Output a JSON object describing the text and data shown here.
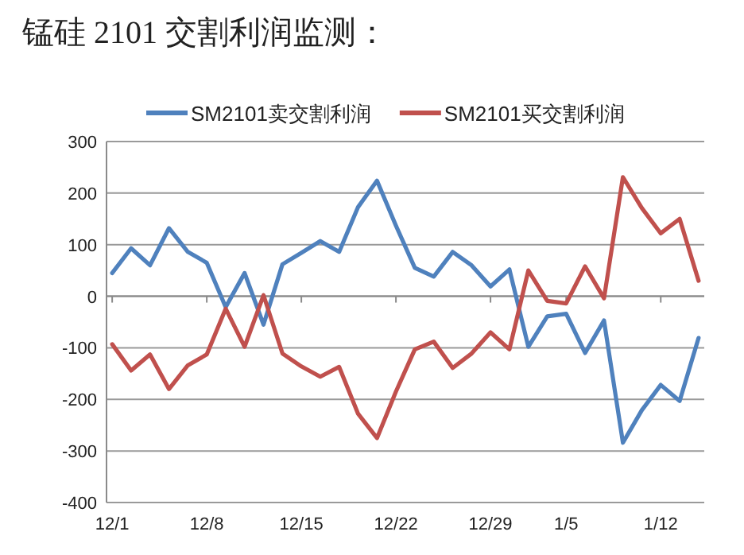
{
  "chart_data": {
    "type": "line",
    "title": "锰硅 2101 交割利润监测：",
    "categories": [
      "12/1",
      null,
      null,
      null,
      null,
      "12/8",
      null,
      null,
      null,
      null,
      "12/15",
      null,
      null,
      null,
      null,
      "12/22",
      null,
      null,
      null,
      null,
      "12/29",
      null,
      null,
      null,
      "1/5",
      null,
      null,
      null,
      null,
      "1/12",
      null,
      null
    ],
    "series": [
      {
        "name": "SM2101卖交割利润",
        "color": "#4f81bd",
        "values": [
          45,
          93,
          60,
          132,
          86,
          65,
          -21,
          45,
          -55,
          62,
          84,
          107,
          86,
          173,
          224,
          137,
          55,
          38,
          86,
          60,
          19,
          52,
          -98,
          -39,
          -34,
          -110,
          -47,
          -284,
          -221,
          -172,
          -203,
          -81
        ]
      },
      {
        "name": "SM2101买交割利润",
        "color": "#c0504d",
        "values": [
          -93,
          -144,
          -113,
          -180,
          -134,
          -113,
          -24,
          -98,
          2,
          -111,
          -136,
          -156,
          -137,
          -228,
          -275,
          -185,
          -103,
          -88,
          -139,
          -111,
          -70,
          -103,
          50,
          -9,
          -14,
          58,
          -4,
          231,
          171,
          122,
          150,
          30
        ]
      }
    ],
    "ylim": [
      -400,
      300
    ],
    "yticks": [
      -400,
      -300,
      -200,
      -100,
      0,
      100,
      200,
      300
    ],
    "grid": "y",
    "legend": "top"
  }
}
